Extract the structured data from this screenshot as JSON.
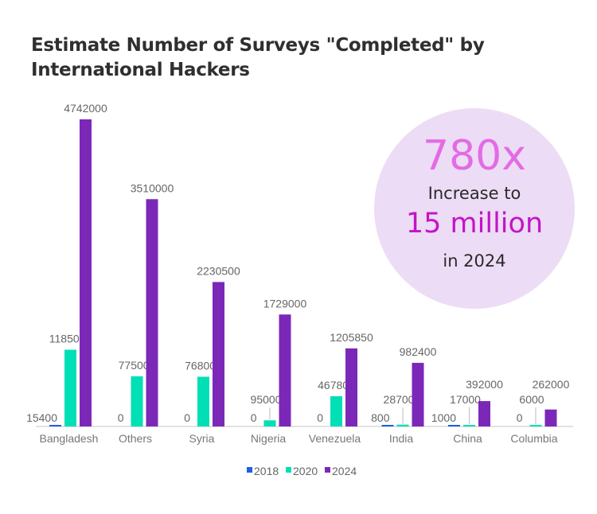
{
  "chart_data": {
    "type": "bar",
    "title": "Estimate Number of Surveys \"Completed\" by International Hackers",
    "xlabel": "",
    "ylabel": "",
    "ylim": [
      0,
      4742000
    ],
    "grid": false,
    "legend": "bottom",
    "categories": [
      "Bangladesh",
      "Others",
      "Syria",
      "Nigeria",
      "Venezuela",
      "India",
      "China",
      "Columbia"
    ],
    "series": [
      {
        "name": "2018",
        "color": "#1f5fe0",
        "values": [
          15400,
          0,
          0,
          0,
          0,
          800,
          1000,
          0
        ]
      },
      {
        "name": "2020",
        "color": "#00dfb6",
        "values": [
          1185000,
          775000,
          768000,
          95000,
          467800,
          28700,
          17000,
          6000
        ]
      },
      {
        "name": "2024",
        "color": "#7b28b8",
        "values": [
          4742000,
          3510000,
          2230500,
          1729000,
          1205850,
          982400,
          392000,
          262000
        ]
      }
    ]
  },
  "callout": {
    "multiplier": "780x",
    "line1": "Increase to",
    "amount": "15 million",
    "line3": "in 2024",
    "bg_color": "#ecdcf5",
    "multiplier_color": "#e36be6",
    "amount_color": "#c413c8"
  }
}
